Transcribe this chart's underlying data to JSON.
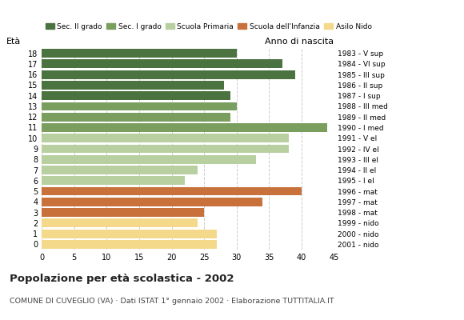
{
  "ages": [
    18,
    17,
    16,
    15,
    14,
    13,
    12,
    11,
    10,
    9,
    8,
    7,
    6,
    5,
    4,
    3,
    2,
    1,
    0
  ],
  "values": [
    30,
    37,
    39,
    28,
    29,
    30,
    29,
    44,
    38,
    38,
    33,
    24,
    22,
    40,
    34,
    25,
    24,
    27,
    27
  ],
  "right_labels": [
    "1983 - V sup",
    "1984 - VI sup",
    "1985 - III sup",
    "1986 - II sup",
    "1987 - I sup",
    "1988 - III med",
    "1989 - II med",
    "1990 - I med",
    "1991 - V el",
    "1992 - IV el",
    "1993 - III el",
    "1994 - II el",
    "1995 - I el",
    "1996 - mat",
    "1997 - mat",
    "1998 - mat",
    "1999 - nido",
    "2000 - nido",
    "2001 - nido"
  ],
  "colors": {
    "18": "#4a7340",
    "17": "#4a7340",
    "16": "#4a7340",
    "15": "#4a7340",
    "14": "#4a7340",
    "13": "#7a9e5e",
    "12": "#7a9e5e",
    "11": "#7a9e5e",
    "10": "#b8cfa0",
    "9": "#b8cfa0",
    "8": "#b8cfa0",
    "7": "#b8cfa0",
    "6": "#b8cfa0",
    "5": "#c8713a",
    "4": "#c8713a",
    "3": "#c8713a",
    "2": "#f5d98b",
    "1": "#f5d98b",
    "0": "#f5d98b"
  },
  "legend_labels": [
    "Sec. II grado",
    "Sec. I grado",
    "Scuola Primaria",
    "Scuola dell'Infanzia",
    "Asilo Nido"
  ],
  "legend_colors": [
    "#4a7340",
    "#7a9e5e",
    "#b8cfa0",
    "#c8713a",
    "#f5d98b"
  ],
  "title": "Popolazione per età scolastica - 2002",
  "subtitle": "COMUNE DI CUVEGLIO (VA) · Dati ISTAT 1° gennaio 2002 · Elaborazione TUTTITALIA.IT",
  "ylabel_left": "Età",
  "ylabel_right": "Anno di nascita",
  "xlim": [
    0,
    45
  ],
  "xticks": [
    0,
    5,
    10,
    15,
    20,
    25,
    30,
    35,
    40,
    45
  ],
  "background_color": "#ffffff",
  "grid_color": "#cccccc"
}
